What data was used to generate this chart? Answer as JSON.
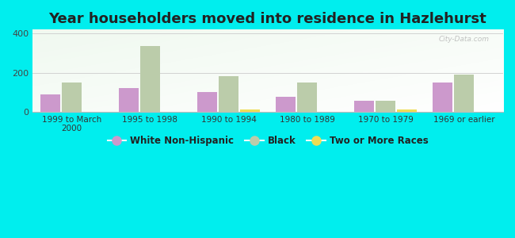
{
  "title": "Year householders moved into residence in Hazlehurst",
  "categories": [
    "1999 to March\n2000",
    "1995 to 1998",
    "1990 to 1994",
    "1980 to 1989",
    "1970 to 1979",
    "1969 or earlier"
  ],
  "series": {
    "White Non-Hispanic": [
      90,
      120,
      100,
      75,
      55,
      150
    ],
    "Black": [
      148,
      338,
      183,
      148,
      55,
      188
    ],
    "Two or More Races": [
      0,
      0,
      12,
      0,
      10,
      0
    ]
  },
  "colors": {
    "White Non-Hispanic": "#cc99cc",
    "Black": "#bbccaa",
    "Two or More Races": "#eedd55"
  },
  "ylim": [
    0,
    420
  ],
  "yticks": [
    0,
    200,
    400
  ],
  "background_color": "#00eeee",
  "title_fontsize": 13,
  "watermark": "City-Data.com"
}
